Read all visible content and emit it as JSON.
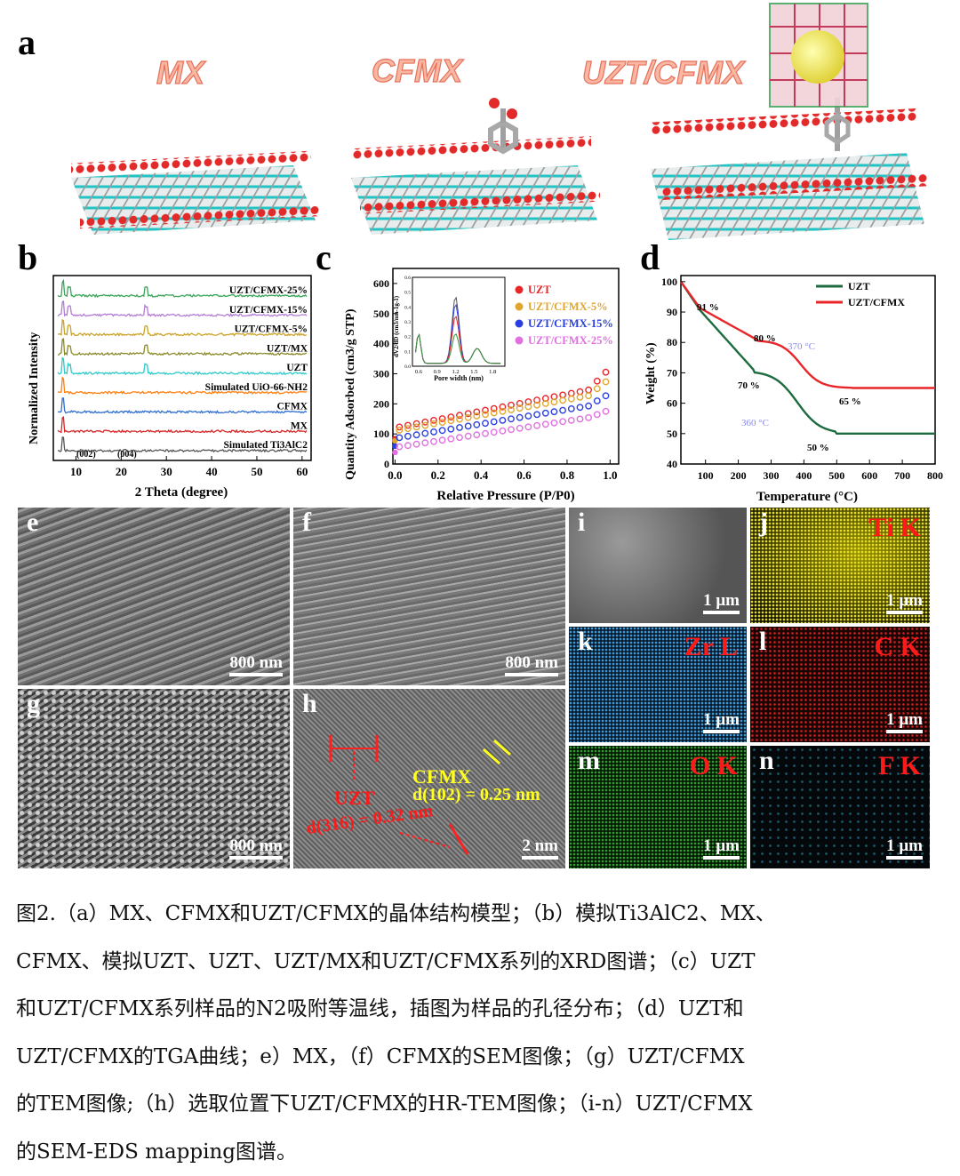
{
  "panel_a": {
    "label": "a",
    "models": [
      "MX",
      "CFMX",
      "UZT/CFMX"
    ]
  },
  "panel_b": {
    "label": "b",
    "xlabel": "2 Theta (degree)",
    "ylabel": "Normalized Intensity",
    "xticks": [
      "10",
      "20",
      "30",
      "40",
      "50",
      "60"
    ],
    "series": [
      "UZT/CFMX-25%",
      "UZT/CFMX-15%",
      "UZT/CFMX-5%",
      "UZT/MX",
      "UZT",
      "Simulated UiO-66-NH2",
      "CFMX",
      "MX",
      "Simulated Ti3AlC2"
    ],
    "series_colors": [
      "#3aa55a",
      "#b47cd6",
      "#c9a227",
      "#8a8a2a",
      "#2ec9c9",
      "#ff7f0e",
      "#2f6fd1",
      "#d62728",
      "#555555"
    ],
    "annotations": [
      "(002)",
      "(004)"
    ]
  },
  "panel_c": {
    "label": "c",
    "xlabel": "Relative Pressure (P/P0)",
    "ylabel": "Quantity Adsorbed (cm3/g STP)",
    "xticks": [
      "0.0",
      "0.2",
      "0.4",
      "0.6",
      "0.8",
      "1.0"
    ],
    "yticks": [
      "0",
      "100",
      "200",
      "300",
      "400",
      "500",
      "600"
    ],
    "legend": [
      "UZT",
      "UZT/CFMX-5%",
      "UZT/CFMX-15%",
      "UZT/CFMX-25%"
    ],
    "legend_colors": [
      "#e8262a",
      "#e0a72e",
      "#2b3fe0",
      "#e070e0"
    ],
    "inset": {
      "xlabel": "Pore width (nm)",
      "ylabel": "dV2/dD (cm3/nm-1g-1)",
      "xticks": [
        "0.6",
        "0.9",
        "1.2",
        "1.5",
        "1.8"
      ],
      "yticks": [
        "0.0",
        "0.1",
        "0.2",
        "0.3",
        "0.4",
        "0.5",
        "0.6"
      ]
    }
  },
  "panel_d": {
    "label": "d",
    "xlabel": "Temperature (°C)",
    "ylabel": "Weight (%)",
    "xticks": [
      "100",
      "200",
      "300",
      "400",
      "500",
      "600",
      "700",
      "800"
    ],
    "yticks": [
      "40",
      "50",
      "60",
      "70",
      "80",
      "90",
      "100"
    ],
    "legend": [
      "UZT",
      "UZT/CFMX"
    ],
    "legend_colors": [
      "#1d6b3f",
      "#e8262a"
    ],
    "annotations": [
      "91 %",
      "80 %",
      "370 °C",
      "70 %",
      "360 °C",
      "65 %",
      "50 %"
    ]
  },
  "micrographs": {
    "e": {
      "label": "e",
      "scale": "800 nm"
    },
    "f": {
      "label": "f",
      "scale": "800 nm"
    },
    "g": {
      "label": "g",
      "scale": "800 nm"
    },
    "h": {
      "label": "h",
      "scale": "2 nm",
      "uzt": "UZT",
      "uzt_d": "d(316) = 0.32 nm",
      "cfmx": "CFMX",
      "cfmx_d": "d(102) = 0.25 nm"
    },
    "i": {
      "label": "i",
      "scale": "1 μm"
    },
    "j": {
      "label": "j",
      "scale": "1 μm",
      "element": "Ti K"
    },
    "k": {
      "label": "k",
      "scale": "1 μm",
      "element": "Zr L"
    },
    "l": {
      "label": "l",
      "scale": "1 μm",
      "element": "C K"
    },
    "m": {
      "label": "m",
      "scale": "1 μm",
      "element": "O K"
    },
    "n": {
      "label": "n",
      "scale": "1 μm",
      "element": "F K"
    }
  },
  "caption": [
    "图2.（a）MX、CFMX和UZT/CFMX的晶体结构模型；（b）模拟Ti3AlC2、MX、",
    "CFMX、模拟UZT、UZT、UZT/MX和UZT/CFMX系列的XRD图谱；（c）UZT",
    "和UZT/CFMX系列样品的N2吸附等温线，插图为样品的孔径分布；（d）UZT和",
    "UZT/CFMX的TGA曲线；e）MX，（f）CFMX的SEM图像；（g）UZT/CFMX",
    "的TEM图像;（h）选取位置下UZT/CFMX的HR-TEM图像；（i-n）UZT/CFMX",
    "的SEM-EDS mapping图谱。"
  ]
}
